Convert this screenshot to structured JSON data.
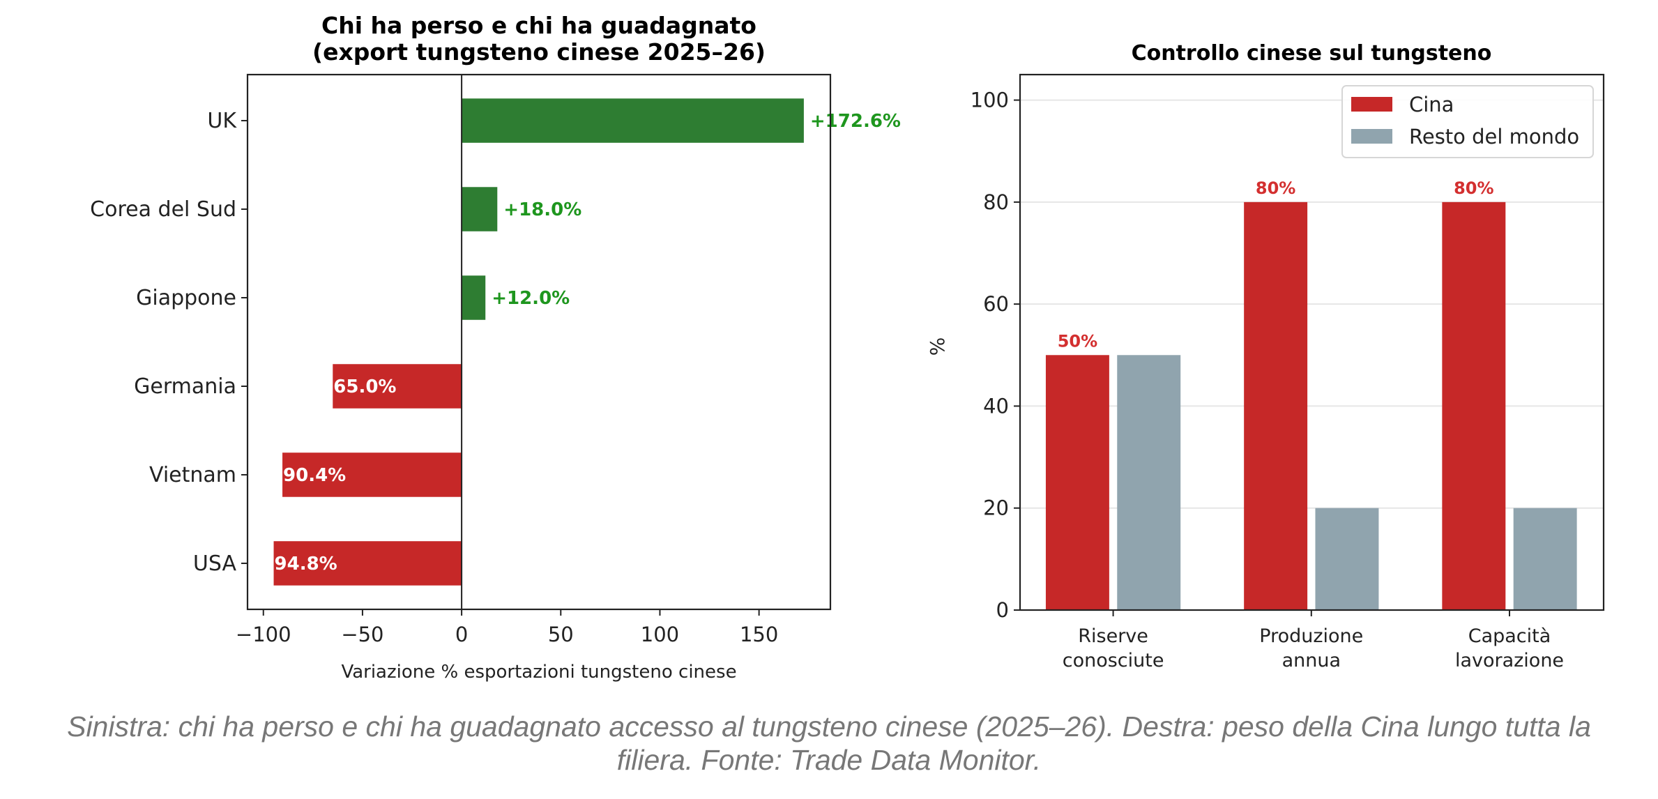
{
  "chart_data": [
    {
      "type": "bar",
      "orientation": "horizontal",
      "title": "Chi ha perso e chi ha guadagnato\n(export tungsteno cinese 2025–26)",
      "title_lines": [
        "Chi ha perso e chi ha guadagnato",
        "(export tungsteno cinese 2025–26)"
      ],
      "xlabel": "Variazione % esportazioni tungsteno cinese",
      "ylabel": "",
      "categories": [
        "UK",
        "Corea del Sud",
        "Giappone",
        "Germania",
        "Vietnam",
        "USA"
      ],
      "values": [
        172.6,
        18.0,
        12.0,
        -65.0,
        -90.4,
        -94.8
      ],
      "data_labels": [
        "+172.6%",
        "+18.0%",
        "+12.0%",
        "65.0%",
        "90.4%",
        "94.8%"
      ],
      "xlim": [
        -108,
        186
      ],
      "xticks": [
        -100,
        -50,
        0,
        50,
        100,
        150
      ],
      "xtick_labels": [
        "−100",
        "−50",
        "0",
        "50",
        "100",
        "150"
      ],
      "grid": false,
      "zero_line": true,
      "colors": {
        "positive": "#2e7d32",
        "negative": "#c62828",
        "positive_label": "#1e961e",
        "negative_label": "#ffffff"
      }
    },
    {
      "type": "bar",
      "orientation": "vertical",
      "title": "Controllo cinese sul tungsteno",
      "xlabel": "",
      "ylabel": "%",
      "categories": [
        "Riserve\nconosciute",
        "Produzione\nannua",
        "Capacità\nlavorazione"
      ],
      "category_lines": [
        [
          "Riserve",
          "conosciute"
        ],
        [
          "Produzione",
          "annua"
        ],
        [
          "Capacità",
          "lavorazione"
        ]
      ],
      "series": [
        {
          "name": "Cina",
          "values": [
            50,
            80,
            80
          ],
          "color": "#c62828",
          "data_labels": [
            "50%",
            "80%",
            "80%"
          ]
        },
        {
          "name": "Resto del mondo",
          "values": [
            50,
            20,
            20
          ],
          "color": "#90a4ae"
        }
      ],
      "ylim": [
        0,
        105
      ],
      "yticks": [
        0,
        20,
        40,
        60,
        80,
        100
      ],
      "ytick_labels": [
        "0",
        "20",
        "40",
        "60",
        "80",
        "100"
      ],
      "grid": "y",
      "legend": "top-right",
      "colors": {
        "data_label": "#d32f2f"
      }
    }
  ],
  "caption": {
    "line1": "Sinistra: chi ha perso e chi ha guadagnato accesso al tungsteno cinese (2025–26). Destra: peso della Cina lungo tutta la",
    "line2": "filiera. Fonte: Trade Data Monitor."
  }
}
